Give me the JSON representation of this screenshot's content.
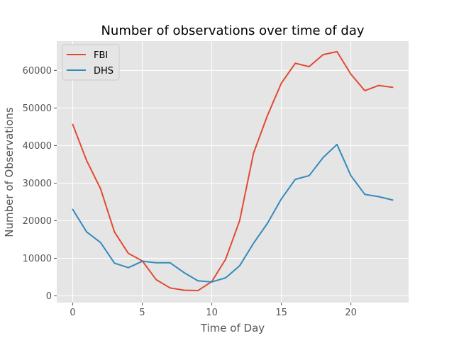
{
  "chart_data": {
    "type": "line",
    "title": "Number of observations over time of day",
    "xlabel": "Time of Day",
    "ylabel": "Number of Observations",
    "x": [
      0,
      1,
      2,
      3,
      4,
      5,
      6,
      7,
      8,
      9,
      10,
      11,
      12,
      13,
      14,
      15,
      16,
      17,
      18,
      19,
      20,
      21,
      22,
      23
    ],
    "xlim": [
      -1.15,
      24.15
    ],
    "ylim": [
      -1800,
      67800
    ],
    "xticks": [
      0,
      5,
      10,
      15,
      20
    ],
    "yticks": [
      0,
      10000,
      20000,
      30000,
      40000,
      50000,
      60000
    ],
    "grid": true,
    "legend": "top-left",
    "background": "#e5e5e5",
    "series": [
      {
        "name": "FBI",
        "color": "#e24a33",
        "values": [
          45600,
          36000,
          28500,
          17000,
          11300,
          9300,
          4300,
          2100,
          1500,
          1400,
          3800,
          9800,
          20000,
          38000,
          48000,
          56600,
          61900,
          61000,
          64200,
          65000,
          59000,
          54600,
          56000,
          55500
        ]
      },
      {
        "name": "DHS",
        "color": "#348abd",
        "values": [
          23000,
          17000,
          14200,
          8700,
          7500,
          9200,
          8800,
          8800,
          6200,
          4000,
          3700,
          4800,
          8000,
          14000,
          19300,
          25800,
          31000,
          32000,
          36800,
          40300,
          32000,
          27000,
          26400,
          25500
        ]
      }
    ]
  }
}
